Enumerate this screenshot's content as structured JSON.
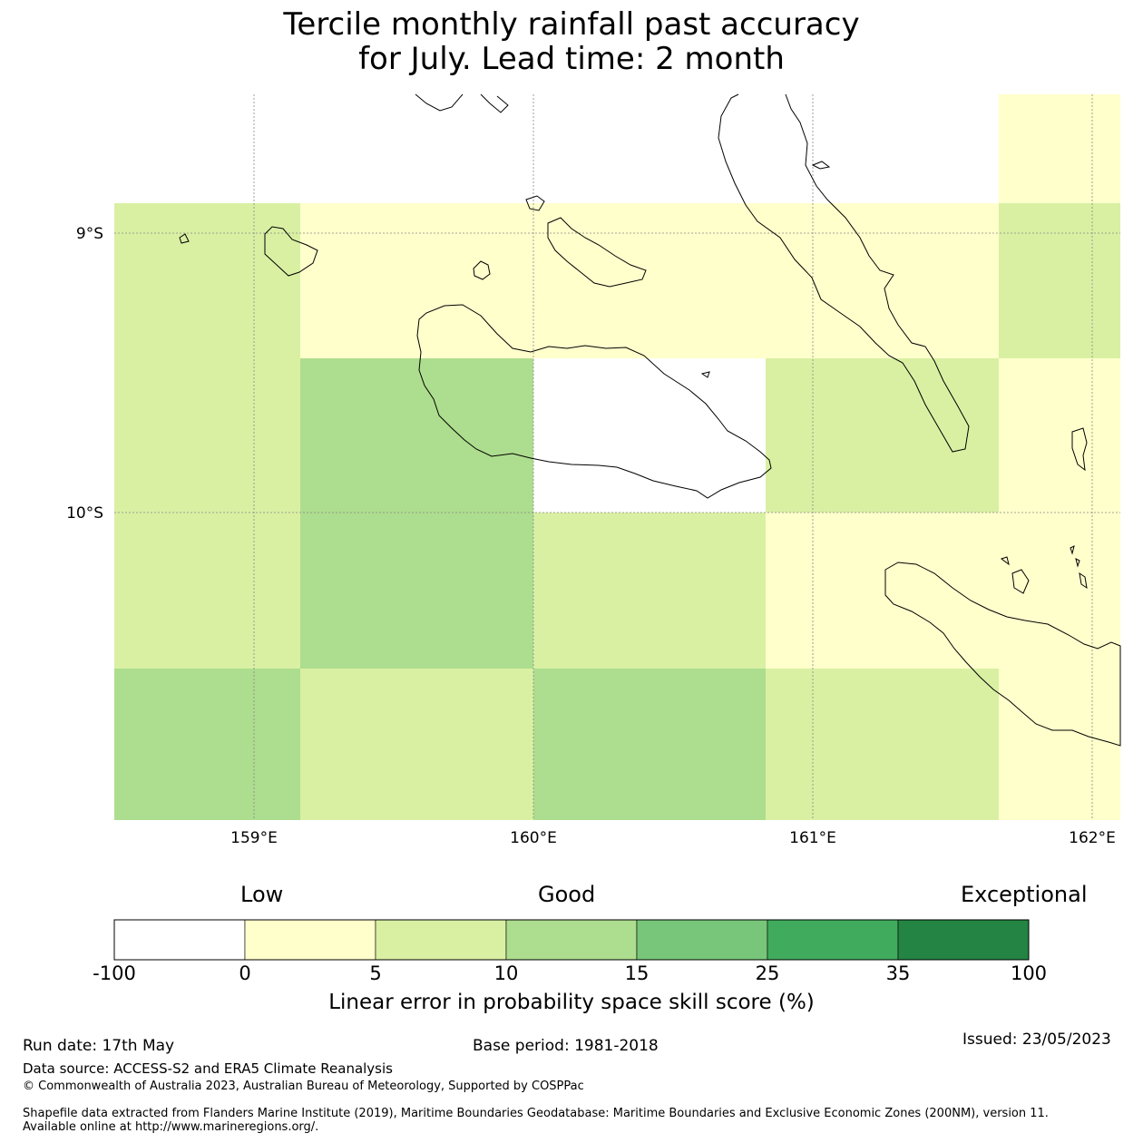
{
  "title": {
    "line1": "Tercile monthly rainfall past accuracy",
    "line2": "for July. Lead time: 2 month"
  },
  "map": {
    "lat_labels": [
      "9°S",
      "10°S"
    ],
    "lon_labels": [
      "159°E",
      "160°E",
      "161°E",
      "162°E"
    ],
    "extent": {
      "lon_min": 158.5,
      "lon_max": 162.1,
      "lat_top": -8.5,
      "lat_bottom": -11.1
    },
    "gridlines": true,
    "cell_colors": [
      [
        "#ffffff",
        "#ffffff",
        "#ffffff",
        "#ffffff",
        "#ffffcc"
      ],
      [
        "#d9f0a3",
        "#ffffcc",
        "#ffffcc",
        "#ffffcc",
        "#d9f0a3"
      ],
      [
        "#d9f0a3",
        "#addd8e",
        "#ffffff",
        "#d9f0a3",
        "#ffffcc"
      ],
      [
        "#d9f0a3",
        "#addd8e",
        "#d9f0a3",
        "#ffffcc",
        "#ffffcc"
      ],
      [
        "#addd8e",
        "#d9f0a3",
        "#addd8e",
        "#d9f0a3",
        "#ffffcc"
      ]
    ]
  },
  "colorbar": {
    "words": {
      "low": "Low",
      "good": "Good",
      "exceptional": "Exceptional"
    },
    "ticks": [
      "-100",
      "0",
      "5",
      "10",
      "15",
      "25",
      "35",
      "100"
    ],
    "colors": [
      "#ffffff",
      "#ffffcc",
      "#d9f0a3",
      "#addd8e",
      "#78c679",
      "#41ab5d",
      "#238443"
    ],
    "label": "Linear error in probability space skill score (%)"
  },
  "footer": {
    "run_date": "Run date: 17th May",
    "base_period": "Base period: 1981-2018",
    "issued": "Issued: 23/05/2023",
    "data_source": "Data source: ACCESS-S2 and ERA5 Climate Reanalysis",
    "copyright": "© Commonwealth of Australia 2023, Australian Bureau of Meteorology, Supported by COSPPac",
    "shapefile": "Shapefile data extracted from Flanders Marine Institute (2019), Maritime Boundaries Geodatabase: Maritime Boundaries and Exclusive Economic Zones (200NM), version 11. Available online at http://www.marineregions.org/."
  }
}
